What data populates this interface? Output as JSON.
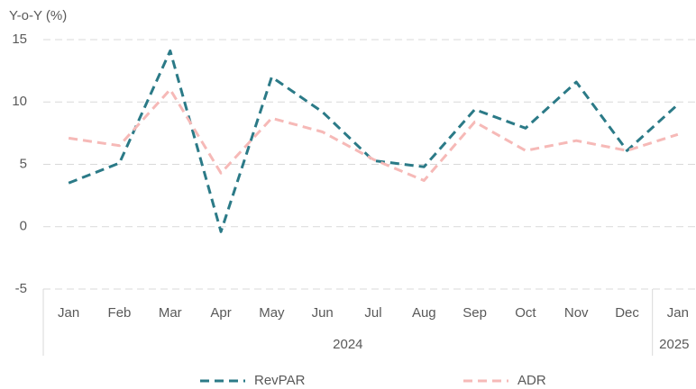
{
  "chart_data": {
    "type": "line",
    "y_axis_label": "Y-o-Y (%)",
    "categories": [
      "Jan",
      "Feb",
      "Mar",
      "Apr",
      "May",
      "Jun",
      "Jul",
      "Aug",
      "Sep",
      "Oct",
      "Nov",
      "Dec",
      "Jan"
    ],
    "category_groups": [
      {
        "name": "2024",
        "categories": [
          "Jan",
          "Feb",
          "Mar",
          "Apr",
          "May",
          "Jun",
          "Jul",
          "Aug",
          "Sep",
          "Oct",
          "Nov",
          "Dec"
        ]
      },
      {
        "name": "2025",
        "categories": [
          "Jan"
        ]
      }
    ],
    "series": [
      {
        "name": "RevPAR",
        "color": "#2b7a87",
        "values": [
          3.5,
          5.1,
          14.1,
          -0.4,
          12.0,
          9.2,
          5.3,
          4.8,
          9.4,
          7.9,
          11.6,
          6.1,
          9.8
        ]
      },
      {
        "name": "ADR",
        "color": "#f6b9b7",
        "values": [
          7.1,
          6.5,
          11.0,
          4.3,
          8.7,
          7.6,
          5.4,
          3.7,
          8.4,
          6.1,
          6.9,
          6.1,
          7.4
        ]
      }
    ],
    "ylim": [
      -5,
      15
    ],
    "yticks": [
      -5,
      0,
      5,
      10,
      15
    ],
    "grid": true,
    "dashed": true,
    "legend": "bottom"
  }
}
